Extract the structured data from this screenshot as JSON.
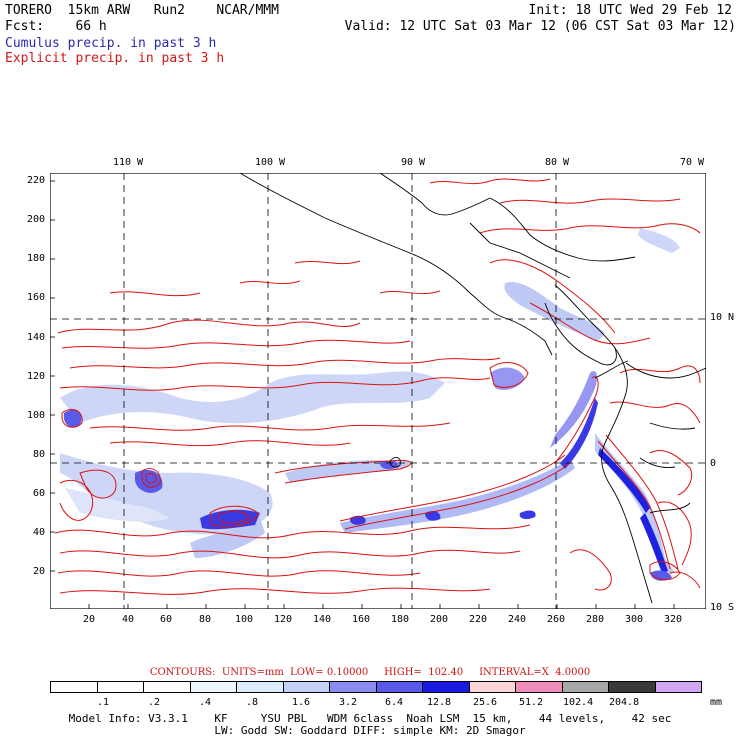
{
  "header": {
    "line1_left": "TORERO  15km ARW   Run2    NCAR/MMM",
    "line2_left": "Fcst:    66 h",
    "init": "Init: 18 UTC Wed 29 Feb 12",
    "valid": "Valid: 12 UTC Sat 03 Mar 12 (06 CST Sat 03 Mar 12)",
    "cumulus_label": "Cumulus precip. in past 3 h",
    "explicit_label": "Explicit precip. in past 3 h"
  },
  "map": {
    "lon_labels": [
      "110 W",
      "100 W",
      "90 W",
      "80 W",
      "70 W"
    ],
    "lat_labels": [
      "10 N",
      "0",
      "10 S"
    ],
    "y_ticks": [
      "220",
      "200",
      "180",
      "160",
      "140",
      "120",
      "100",
      "80",
      "60",
      "40",
      "20"
    ],
    "x_ticks": [
      "20",
      "40",
      "60",
      "80",
      "100",
      "120",
      "140",
      "160",
      "180",
      "200",
      "220",
      "240",
      "260",
      "280",
      "300",
      "320"
    ]
  },
  "contours": {
    "text": "CONTOURS:  UNITS=mm  LOW= 0.10000     HIGH=  102.40     INTERVAL=X  4.0000"
  },
  "legend": {
    "labels": [
      ".1",
      ".2",
      ".4",
      ".8",
      "1.6",
      "3.2",
      "6.4",
      "12.8",
      "25.6",
      "51.2",
      "102.4",
      "204.8"
    ],
    "units": "mm",
    "colors": [
      "#ffffff",
      "#ffffff",
      "#ffffff",
      "#eef6ff",
      "#dcecfc",
      "#c4d0f8",
      "#8c8cf0",
      "#5a5ae8",
      "#1a1ae0",
      "#fbd5d8",
      "#f08cbc",
      "#a8a8a8",
      "#3a3a3a",
      "#d2a6f2"
    ]
  },
  "footer": {
    "line1": "Model Info: V3.3.1    KF     YSU PBL   WDM 6class  Noah LSM  15 km,    44 levels,    42 sec",
    "line2": "LW: Godd SW: Goddard DIFF: simple KM: 2D Smagor"
  },
  "colors": {
    "contour": "#dd1111",
    "cumulus": "#5c5ce8",
    "cumulus_light": "#b8c4f6",
    "cumulus_dark": "#1a1ae0",
    "coast": "#000000"
  }
}
